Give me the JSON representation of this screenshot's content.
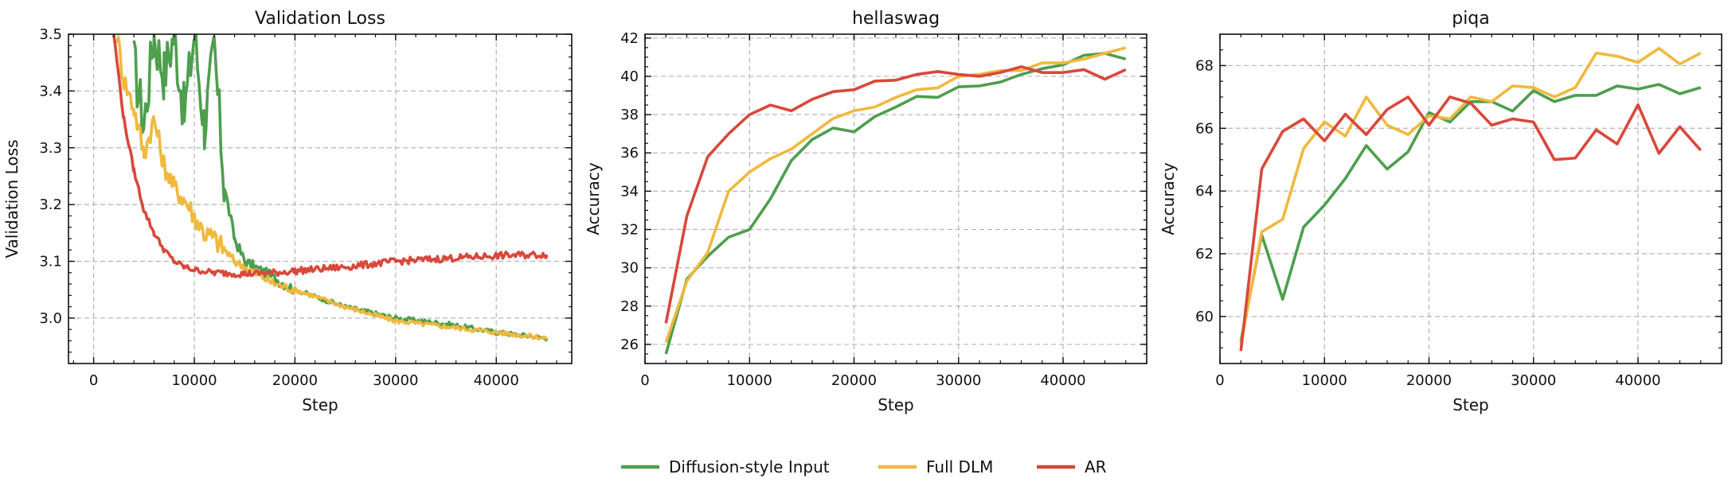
{
  "legend": [
    {
      "name": "Diffusion-style Input",
      "color": "#4e9e4e"
    },
    {
      "name": "Full DLM",
      "color": "#f0b93e"
    },
    {
      "name": "AR",
      "color": "#d9483b"
    }
  ],
  "chart_data": [
    {
      "type": "line",
      "title": "Validation Loss",
      "xlabel": "Step",
      "ylabel": "Validation Loss",
      "xlim": [
        -2500,
        47500
      ],
      "ylim": [
        2.92,
        3.5
      ],
      "xticks": [
        0,
        10000,
        20000,
        30000,
        40000
      ],
      "yticks": [
        3.0,
        3.1,
        3.2,
        3.3,
        3.4,
        3.5
      ],
      "ytick_format": 1,
      "grid": true,
      "series": [
        {
          "name": "Diffusion-style Input",
          "color": "#4e9e4e",
          "x": [
            4000,
            5000,
            6000,
            7000,
            8000,
            9000,
            10000,
            11000,
            12000,
            13000,
            14000,
            15000,
            17000,
            20000,
            25000,
            30000,
            35000,
            40000,
            45000
          ],
          "y": [
            3.45,
            3.34,
            3.5,
            3.43,
            3.5,
            3.36,
            3.5,
            3.34,
            3.47,
            3.23,
            3.14,
            3.1,
            3.08,
            3.05,
            3.02,
            3.0,
            2.99,
            2.975,
            2.965
          ]
        },
        {
          "name": "Full DLM",
          "color": "#f0b93e",
          "x": [
            2300,
            3000,
            4000,
            5000,
            6000,
            7000,
            8000,
            9000,
            10000,
            11000,
            12000,
            13000,
            14000,
            16000,
            18000,
            20000,
            25000,
            30000,
            35000,
            40000,
            45000
          ],
          "y": [
            3.5,
            3.42,
            3.37,
            3.29,
            3.35,
            3.27,
            3.23,
            3.21,
            3.18,
            3.15,
            3.14,
            3.12,
            3.1,
            3.08,
            3.06,
            3.05,
            3.02,
            2.995,
            2.985,
            2.975,
            2.965
          ]
        },
        {
          "name": "AR",
          "color": "#d9483b",
          "x": [
            2000,
            3000,
            4000,
            5000,
            6000,
            7000,
            8000,
            9000,
            10000,
            12000,
            15000,
            18000,
            20000,
            25000,
            30000,
            35000,
            40000,
            45000
          ],
          "y": [
            3.5,
            3.35,
            3.26,
            3.19,
            3.15,
            3.12,
            3.1,
            3.09,
            3.085,
            3.08,
            3.078,
            3.08,
            3.083,
            3.09,
            3.1,
            3.105,
            3.11,
            3.112
          ]
        }
      ]
    },
    {
      "type": "line",
      "title": "hellaswag",
      "xlabel": "Step",
      "ylabel": "Accuracy",
      "xlim": [
        0,
        48000
      ],
      "ylim": [
        25.0,
        42.2
      ],
      "xticks": [
        0,
        10000,
        20000,
        30000,
        40000
      ],
      "yticks": [
        26,
        28,
        30,
        32,
        34,
        36,
        38,
        40,
        42
      ],
      "ytick_format": 0,
      "grid": true,
      "series": [
        {
          "name": "Diffusion-style Input",
          "color": "#4e9e4e",
          "x": [
            2000,
            4000,
            6000,
            8000,
            10000,
            12000,
            14000,
            16000,
            18000,
            20000,
            22000,
            24000,
            26000,
            28000,
            30000,
            32000,
            34000,
            36000,
            38000,
            40000,
            42000,
            44000,
            46000
          ],
          "y": [
            25.5,
            29.4,
            30.6,
            31.6,
            32.0,
            33.6,
            35.6,
            36.7,
            37.3,
            37.1,
            37.9,
            38.4,
            38.95,
            38.9,
            39.45,
            39.5,
            39.7,
            40.1,
            40.4,
            40.6,
            41.1,
            41.2,
            40.9
          ]
        },
        {
          "name": "Full DLM",
          "color": "#f0b93e",
          "x": [
            2000,
            4000,
            6000,
            8000,
            10000,
            12000,
            14000,
            16000,
            18000,
            20000,
            22000,
            24000,
            26000,
            28000,
            30000,
            32000,
            34000,
            36000,
            38000,
            40000,
            42000,
            44000,
            46000
          ],
          "y": [
            26.1,
            29.3,
            30.8,
            34.0,
            35.0,
            35.7,
            36.2,
            37.0,
            37.8,
            38.2,
            38.4,
            38.9,
            39.3,
            39.4,
            40.0,
            40.1,
            40.3,
            40.3,
            40.7,
            40.7,
            40.9,
            41.2,
            41.5
          ]
        },
        {
          "name": "AR",
          "color": "#d9483b",
          "x": [
            2000,
            4000,
            6000,
            8000,
            10000,
            12000,
            14000,
            16000,
            18000,
            20000,
            22000,
            24000,
            26000,
            28000,
            30000,
            32000,
            34000,
            36000,
            38000,
            40000,
            42000,
            44000,
            46000
          ],
          "y": [
            27.1,
            32.7,
            35.8,
            37.0,
            38.0,
            38.5,
            38.2,
            38.8,
            39.2,
            39.3,
            39.75,
            39.8,
            40.1,
            40.25,
            40.1,
            40.0,
            40.2,
            40.5,
            40.2,
            40.2,
            40.35,
            39.85,
            40.35
          ]
        }
      ]
    },
    {
      "type": "line",
      "title": "piqa",
      "xlabel": "Step",
      "ylabel": "Accuracy",
      "xlim": [
        0,
        48000
      ],
      "ylim": [
        58.5,
        69.0
      ],
      "xticks": [
        0,
        10000,
        20000,
        30000,
        40000
      ],
      "yticks": [
        60,
        62,
        64,
        66,
        68
      ],
      "ytick_format": 0,
      "grid": true,
      "series": [
        {
          "name": "Diffusion-style Input",
          "color": "#4e9e4e",
          "x": [
            2000,
            4000,
            6000,
            8000,
            10000,
            12000,
            14000,
            16000,
            18000,
            20000,
            22000,
            24000,
            26000,
            28000,
            30000,
            32000,
            34000,
            36000,
            38000,
            40000,
            42000,
            44000,
            46000
          ],
          "y": [
            59.2,
            62.6,
            60.55,
            62.85,
            63.55,
            64.4,
            65.45,
            64.7,
            65.25,
            66.5,
            66.2,
            66.85,
            66.85,
            66.55,
            67.2,
            66.85,
            67.05,
            67.05,
            67.35,
            67.25,
            67.4,
            67.1,
            67.3
          ]
        },
        {
          "name": "Full DLM",
          "color": "#f0b93e",
          "x": [
            2000,
            4000,
            6000,
            8000,
            10000,
            12000,
            14000,
            16000,
            18000,
            20000,
            22000,
            24000,
            26000,
            28000,
            30000,
            32000,
            34000,
            36000,
            38000,
            40000,
            42000,
            44000,
            46000
          ],
          "y": [
            59.1,
            62.7,
            63.1,
            65.35,
            66.2,
            65.75,
            67.0,
            66.1,
            65.8,
            66.4,
            66.3,
            67.0,
            66.85,
            67.35,
            67.3,
            67.0,
            67.3,
            68.4,
            68.3,
            68.1,
            68.55,
            68.05,
            68.4
          ]
        },
        {
          "name": "AR",
          "color": "#d9483b",
          "x": [
            2000,
            4000,
            6000,
            8000,
            10000,
            12000,
            14000,
            16000,
            18000,
            20000,
            22000,
            24000,
            26000,
            28000,
            30000,
            32000,
            34000,
            36000,
            38000,
            40000,
            42000,
            44000,
            46000
          ],
          "y": [
            58.9,
            64.7,
            65.9,
            66.3,
            65.6,
            66.45,
            65.8,
            66.6,
            67.0,
            66.1,
            67.0,
            66.8,
            66.1,
            66.3,
            66.2,
            65.0,
            65.05,
            65.95,
            65.5,
            66.75,
            65.2,
            66.05,
            65.3
          ]
        }
      ]
    }
  ]
}
